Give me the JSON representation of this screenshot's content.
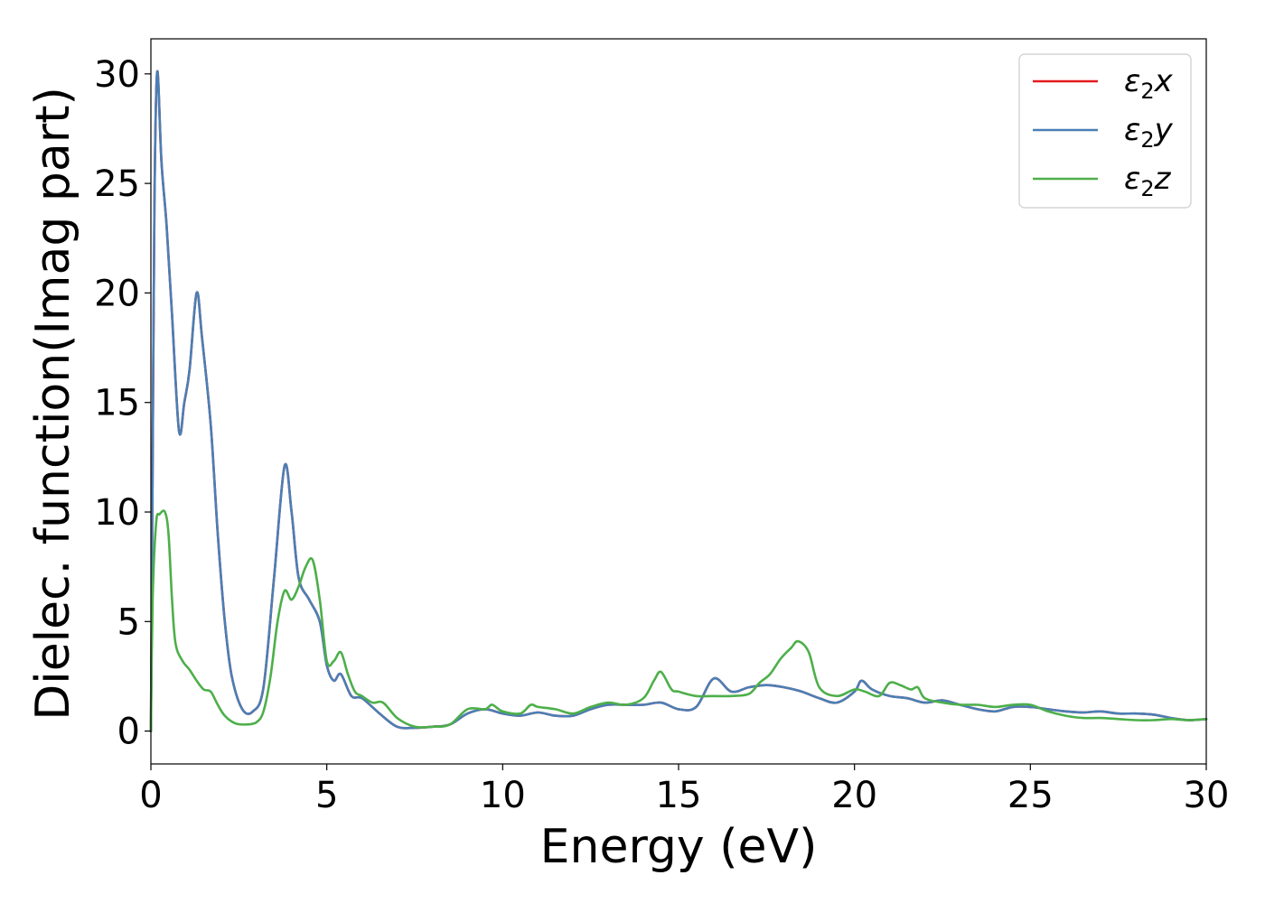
{
  "chart_data": {
    "type": "line",
    "title": "",
    "xlabel": "Energy (eV)",
    "ylabel": "Dielec. function(Imag part)",
    "xlim": [
      0,
      30
    ],
    "ylim": [
      -1.5,
      31.6
    ],
    "xticks": [
      0,
      5,
      10,
      15,
      20,
      25,
      30
    ],
    "yticks": [
      0,
      5,
      10,
      15,
      20,
      25,
      30
    ],
    "grid": false,
    "legend": {
      "position": "top-right"
    },
    "series": [
      {
        "name": "ε2x",
        "legend_main": "ε",
        "legend_sub": "2",
        "legend_var": "x",
        "color": "#e41a1c",
        "points": [
          [
            0,
            0
          ],
          [
            0.05,
            12
          ],
          [
            0.1,
            24
          ],
          [
            0.18,
            30.1
          ],
          [
            0.3,
            26
          ],
          [
            0.45,
            23
          ],
          [
            0.6,
            19
          ],
          [
            0.8,
            13.7
          ],
          [
            0.95,
            15
          ],
          [
            1.1,
            16.5
          ],
          [
            1.3,
            20
          ],
          [
            1.45,
            18
          ],
          [
            1.7,
            14
          ],
          [
            1.9,
            9
          ],
          [
            2.1,
            5
          ],
          [
            2.3,
            2.5
          ],
          [
            2.6,
            1.0
          ],
          [
            2.9,
            0.9
          ],
          [
            3.2,
            2
          ],
          [
            3.5,
            7
          ],
          [
            3.8,
            12.1
          ],
          [
            4.0,
            10
          ],
          [
            4.2,
            7
          ],
          [
            4.5,
            6
          ],
          [
            4.8,
            5
          ],
          [
            5.0,
            3
          ],
          [
            5.2,
            2.3
          ],
          [
            5.4,
            2.6
          ],
          [
            5.7,
            1.6
          ],
          [
            6.0,
            1.5
          ],
          [
            6.5,
            0.8
          ],
          [
            7.0,
            0.2
          ],
          [
            7.5,
            0.15
          ],
          [
            8.0,
            0.2
          ],
          [
            8.5,
            0.3
          ],
          [
            9.0,
            0.8
          ],
          [
            9.5,
            1.0
          ],
          [
            10.0,
            0.8
          ],
          [
            10.5,
            0.7
          ],
          [
            11.0,
            0.85
          ],
          [
            11.5,
            0.7
          ],
          [
            12.0,
            0.7
          ],
          [
            12.5,
            1.0
          ],
          [
            13.0,
            1.2
          ],
          [
            13.5,
            1.2
          ],
          [
            14.0,
            1.2
          ],
          [
            14.5,
            1.3
          ],
          [
            15.0,
            1.0
          ],
          [
            15.5,
            1.1
          ],
          [
            16.0,
            2.4
          ],
          [
            16.5,
            1.8
          ],
          [
            17.0,
            2.0
          ],
          [
            17.5,
            2.1
          ],
          [
            18.0,
            2.0
          ],
          [
            18.5,
            1.8
          ],
          [
            19.0,
            1.5
          ],
          [
            19.5,
            1.3
          ],
          [
            20.0,
            1.8
          ],
          [
            20.2,
            2.3
          ],
          [
            20.5,
            1.9
          ],
          [
            21.0,
            1.6
          ],
          [
            21.5,
            1.5
          ],
          [
            22.0,
            1.3
          ],
          [
            22.5,
            1.4
          ],
          [
            23.0,
            1.2
          ],
          [
            23.5,
            1.0
          ],
          [
            24.0,
            0.9
          ],
          [
            24.5,
            1.1
          ],
          [
            25.0,
            1.1
          ],
          [
            25.5,
            1.0
          ],
          [
            26.0,
            0.9
          ],
          [
            26.5,
            0.85
          ],
          [
            27.0,
            0.9
          ],
          [
            27.5,
            0.8
          ],
          [
            28.0,
            0.8
          ],
          [
            28.5,
            0.75
          ],
          [
            29.0,
            0.6
          ],
          [
            29.5,
            0.5
          ],
          [
            30.0,
            0.55
          ]
        ]
      },
      {
        "name": "ε2y",
        "legend_main": "ε",
        "legend_sub": "2",
        "legend_var": "y",
        "color": "#4a7fb5",
        "points": [
          [
            0,
            0
          ],
          [
            0.05,
            12
          ],
          [
            0.1,
            24
          ],
          [
            0.18,
            30.1
          ],
          [
            0.3,
            26
          ],
          [
            0.45,
            23
          ],
          [
            0.6,
            19
          ],
          [
            0.8,
            13.7
          ],
          [
            0.95,
            15
          ],
          [
            1.1,
            16.5
          ],
          [
            1.3,
            20
          ],
          [
            1.45,
            18
          ],
          [
            1.7,
            14
          ],
          [
            1.9,
            9
          ],
          [
            2.1,
            5
          ],
          [
            2.3,
            2.5
          ],
          [
            2.6,
            1.0
          ],
          [
            2.9,
            0.9
          ],
          [
            3.2,
            2
          ],
          [
            3.5,
            7
          ],
          [
            3.8,
            12.1
          ],
          [
            4.0,
            10
          ],
          [
            4.2,
            7
          ],
          [
            4.5,
            6
          ],
          [
            4.8,
            5
          ],
          [
            5.0,
            3
          ],
          [
            5.2,
            2.3
          ],
          [
            5.4,
            2.6
          ],
          [
            5.7,
            1.6
          ],
          [
            6.0,
            1.5
          ],
          [
            6.5,
            0.8
          ],
          [
            7.0,
            0.2
          ],
          [
            7.5,
            0.15
          ],
          [
            8.0,
            0.2
          ],
          [
            8.5,
            0.3
          ],
          [
            9.0,
            0.8
          ],
          [
            9.5,
            1.0
          ],
          [
            10.0,
            0.8
          ],
          [
            10.5,
            0.7
          ],
          [
            11.0,
            0.85
          ],
          [
            11.5,
            0.7
          ],
          [
            12.0,
            0.7
          ],
          [
            12.5,
            1.0
          ],
          [
            13.0,
            1.2
          ],
          [
            13.5,
            1.2
          ],
          [
            14.0,
            1.2
          ],
          [
            14.5,
            1.3
          ],
          [
            15.0,
            1.0
          ],
          [
            15.5,
            1.1
          ],
          [
            16.0,
            2.4
          ],
          [
            16.5,
            1.8
          ],
          [
            17.0,
            2.0
          ],
          [
            17.5,
            2.1
          ],
          [
            18.0,
            2.0
          ],
          [
            18.5,
            1.8
          ],
          [
            19.0,
            1.5
          ],
          [
            19.5,
            1.3
          ],
          [
            20.0,
            1.8
          ],
          [
            20.2,
            2.3
          ],
          [
            20.5,
            1.9
          ],
          [
            21.0,
            1.6
          ],
          [
            21.5,
            1.5
          ],
          [
            22.0,
            1.3
          ],
          [
            22.5,
            1.4
          ],
          [
            23.0,
            1.2
          ],
          [
            23.5,
            1.0
          ],
          [
            24.0,
            0.9
          ],
          [
            24.5,
            1.1
          ],
          [
            25.0,
            1.1
          ],
          [
            25.5,
            1.0
          ],
          [
            26.0,
            0.9
          ],
          [
            26.5,
            0.85
          ],
          [
            27.0,
            0.9
          ],
          [
            27.5,
            0.8
          ],
          [
            28.0,
            0.8
          ],
          [
            28.5,
            0.75
          ],
          [
            29.0,
            0.6
          ],
          [
            29.5,
            0.5
          ],
          [
            30.0,
            0.55
          ]
        ]
      },
      {
        "name": "ε2z",
        "legend_main": "ε",
        "legend_sub": "2",
        "legend_var": "z",
        "color": "#4daf4a",
        "points": [
          [
            0,
            0
          ],
          [
            0.05,
            6
          ],
          [
            0.15,
            9.5
          ],
          [
            0.25,
            9.9
          ],
          [
            0.4,
            10.0
          ],
          [
            0.5,
            9
          ],
          [
            0.6,
            6
          ],
          [
            0.7,
            4
          ],
          [
            0.9,
            3.2
          ],
          [
            1.1,
            2.8
          ],
          [
            1.3,
            2.3
          ],
          [
            1.5,
            1.9
          ],
          [
            1.7,
            1.8
          ],
          [
            1.9,
            1.2
          ],
          [
            2.1,
            0.7
          ],
          [
            2.4,
            0.35
          ],
          [
            2.7,
            0.3
          ],
          [
            3.0,
            0.4
          ],
          [
            3.2,
            0.9
          ],
          [
            3.4,
            2.5
          ],
          [
            3.6,
            5
          ],
          [
            3.8,
            6.4
          ],
          [
            4.0,
            6
          ],
          [
            4.2,
            6.6
          ],
          [
            4.4,
            7.5
          ],
          [
            4.6,
            7.8
          ],
          [
            4.8,
            6
          ],
          [
            5.0,
            3.2
          ],
          [
            5.2,
            3.2
          ],
          [
            5.4,
            3.6
          ],
          [
            5.6,
            2.6
          ],
          [
            5.8,
            1.8
          ],
          [
            6.0,
            1.6
          ],
          [
            6.3,
            1.3
          ],
          [
            6.6,
            1.3
          ],
          [
            7.0,
            0.6
          ],
          [
            7.5,
            0.2
          ],
          [
            8.0,
            0.2
          ],
          [
            8.5,
            0.3
          ],
          [
            9.0,
            1.0
          ],
          [
            9.5,
            1.0
          ],
          [
            9.7,
            1.2
          ],
          [
            10.0,
            0.9
          ],
          [
            10.5,
            0.8
          ],
          [
            10.8,
            1.2
          ],
          [
            11.0,
            1.1
          ],
          [
            11.5,
            1.0
          ],
          [
            12.0,
            0.8
          ],
          [
            12.5,
            1.1
          ],
          [
            13.0,
            1.3
          ],
          [
            13.5,
            1.2
          ],
          [
            14.0,
            1.5
          ],
          [
            14.3,
            2.3
          ],
          [
            14.5,
            2.7
          ],
          [
            14.8,
            1.9
          ],
          [
            15.0,
            1.8
          ],
          [
            15.5,
            1.6
          ],
          [
            16.0,
            1.6
          ],
          [
            16.5,
            1.6
          ],
          [
            17.0,
            1.7
          ],
          [
            17.3,
            2.2
          ],
          [
            17.6,
            2.6
          ],
          [
            17.9,
            3.3
          ],
          [
            18.2,
            3.8
          ],
          [
            18.4,
            4.1
          ],
          [
            18.7,
            3.6
          ],
          [
            19.0,
            2.0
          ],
          [
            19.5,
            1.6
          ],
          [
            20.0,
            1.9
          ],
          [
            20.3,
            1.8
          ],
          [
            20.7,
            1.6
          ],
          [
            21.0,
            2.2
          ],
          [
            21.3,
            2.1
          ],
          [
            21.6,
            1.9
          ],
          [
            21.8,
            2.0
          ],
          [
            22.0,
            1.5
          ],
          [
            22.5,
            1.3
          ],
          [
            23.0,
            1.2
          ],
          [
            23.5,
            1.2
          ],
          [
            24.0,
            1.1
          ],
          [
            24.5,
            1.2
          ],
          [
            25.0,
            1.2
          ],
          [
            25.5,
            0.9
          ],
          [
            26.0,
            0.7
          ],
          [
            26.5,
            0.6
          ],
          [
            27.0,
            0.6
          ],
          [
            27.5,
            0.55
          ],
          [
            28.0,
            0.5
          ],
          [
            28.5,
            0.5
          ],
          [
            29.0,
            0.55
          ],
          [
            29.5,
            0.5
          ],
          [
            30.0,
            0.55
          ]
        ]
      }
    ]
  }
}
